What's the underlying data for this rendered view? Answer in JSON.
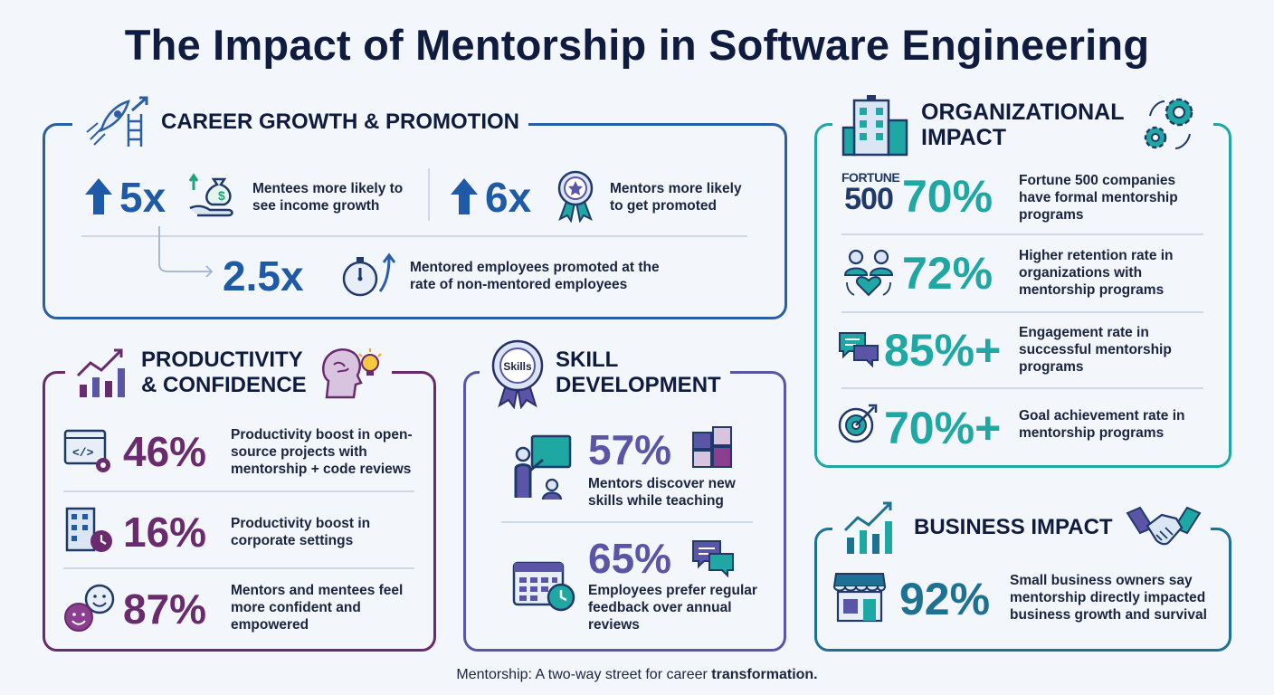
{
  "title": "The Impact of Mentorship in Software Engineering",
  "career": {
    "heading": "CAREER GROWTH & PROMOTION",
    "stat1": {
      "value": "5x",
      "text": "Mentees more likely to see income growth"
    },
    "stat2": {
      "value": "6x",
      "text": "Mentors more likely to get promoted"
    },
    "stat3": {
      "value": "2.5x",
      "text": "Mentored employees promoted at the rate of non-mentored employees"
    }
  },
  "productivity": {
    "heading": "PRODUCTIVITY\n& CONFIDENCE",
    "stats": [
      {
        "value": "46%",
        "text": "Productivity boost in open-source projects with mentorship + code reviews"
      },
      {
        "value": "16%",
        "text": "Productivity boost in corporate settings"
      },
      {
        "value": "87%",
        "text": "Mentors and mentees feel more confident and empowered"
      }
    ]
  },
  "skill": {
    "heading": "SKILL\nDEVELOPMENT",
    "badge": "Skills",
    "stats": [
      {
        "value": "57%",
        "text": "Mentors discover new skills while teaching"
      },
      {
        "value": "65%",
        "text": "Employees prefer regular feedback over annual reviews"
      }
    ]
  },
  "organizational": {
    "heading": "ORGANIZATIONAL\nIMPACT",
    "fortune_top": "FORTUNE",
    "fortune_bottom": "500",
    "stats": [
      {
        "value": "70%",
        "text": "Fortune 500 companies have formal mentorship programs"
      },
      {
        "value": "72%",
        "text": "Higher retention rate in organizations with mentorship programs"
      },
      {
        "value": "85%+",
        "text": "Engagement rate in successful mentorship programs"
      },
      {
        "value": "70%+",
        "text": "Goal achievement rate in mentorship programs"
      }
    ]
  },
  "business": {
    "heading": "BUSINESS IMPACT",
    "stat": {
      "value": "92%",
      "text": "Small business owners say mentorship directly impacted business growth and survival"
    }
  },
  "footer": {
    "text": "Mentorship: A two-way street for career",
    "emphasis": "transformation."
  },
  "colors": {
    "blue": "#1f5aa6",
    "purple": "#6a2a6e",
    "indigo": "#5b55a8",
    "teal": "#1fa7a3",
    "business": "#1d7294"
  }
}
